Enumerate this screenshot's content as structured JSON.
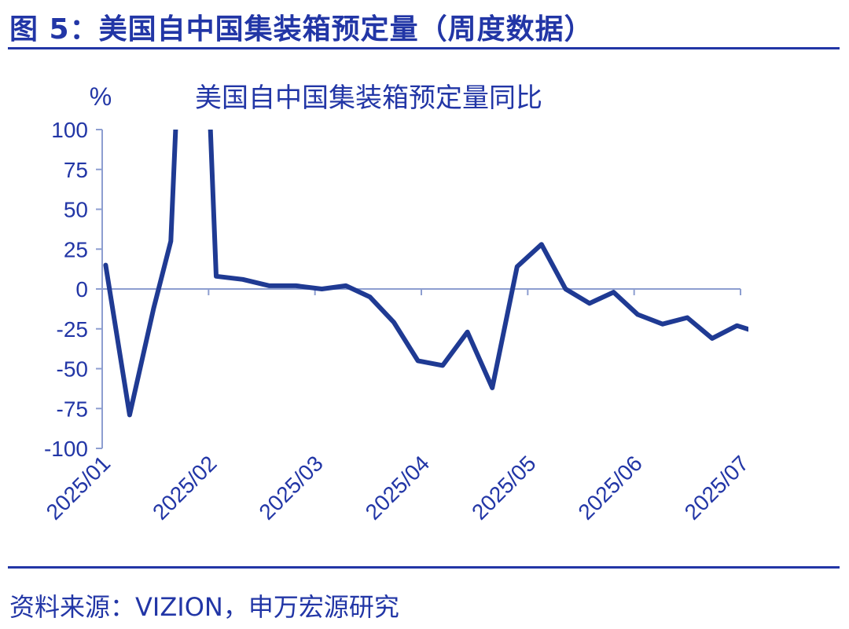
{
  "figure": {
    "title": "图 5：美国自中国集装箱预定量（周度数据）",
    "source": "资料来源：VIZION，申万宏源研究",
    "accent_color": "#2236a6"
  },
  "chart_data": {
    "type": "line",
    "title": "美国自中国集装箱预定量同比",
    "ylabel": "%",
    "xlabel": "",
    "ylim": [
      -100,
      100
    ],
    "yticks": [
      100,
      75,
      50,
      25,
      0,
      -25,
      -50,
      -75,
      -100
    ],
    "ytick_labels": [
      "100",
      "75",
      "50",
      "25",
      "0",
      "-25",
      "-50",
      "-75",
      "-100"
    ],
    "x_tick_labels": [
      "2025/01",
      "2025/02",
      "2025/03",
      "2025/04",
      "2025/05",
      "2025/06",
      "2025/07"
    ],
    "grid": false,
    "line_color": "#1f3a93",
    "series": [
      {
        "values": [
          {
            "x": "2025/01/02",
            "y": 15
          },
          {
            "x": "2025/01/09",
            "y": -79
          },
          {
            "x": "2025/01/16",
            "y": -12
          },
          {
            "x": "2025/01/21",
            "y": 30
          },
          {
            "x": "2025/01/23",
            "y": 130
          },
          {
            "x": "2025/02/01",
            "y": 130
          },
          {
            "x": "2025/02/03",
            "y": 8
          },
          {
            "x": "2025/02/10",
            "y": 6
          },
          {
            "x": "2025/02/17",
            "y": 2
          },
          {
            "x": "2025/02/24",
            "y": 2
          },
          {
            "x": "2025/03/03",
            "y": 0
          },
          {
            "x": "2025/03/10",
            "y": 2
          },
          {
            "x": "2025/03/17",
            "y": -5
          },
          {
            "x": "2025/03/24",
            "y": -21
          },
          {
            "x": "2025/03/31",
            "y": -45
          },
          {
            "x": "2025/04/07",
            "y": -48
          },
          {
            "x": "2025/04/14",
            "y": -27
          },
          {
            "x": "2025/04/21",
            "y": -62
          },
          {
            "x": "2025/04/28",
            "y": 14
          },
          {
            "x": "2025/05/05",
            "y": 28
          },
          {
            "x": "2025/05/12",
            "y": 0
          },
          {
            "x": "2025/05/19",
            "y": -9
          },
          {
            "x": "2025/05/26",
            "y": -2
          },
          {
            "x": "2025/06/02",
            "y": -16
          },
          {
            "x": "2025/06/09",
            "y": -22
          },
          {
            "x": "2025/06/16",
            "y": -18
          },
          {
            "x": "2025/06/23",
            "y": -31
          },
          {
            "x": "2025/06/30",
            "y": -23
          },
          {
            "x": "2025/07/07",
            "y": -28
          }
        ]
      }
    ]
  }
}
